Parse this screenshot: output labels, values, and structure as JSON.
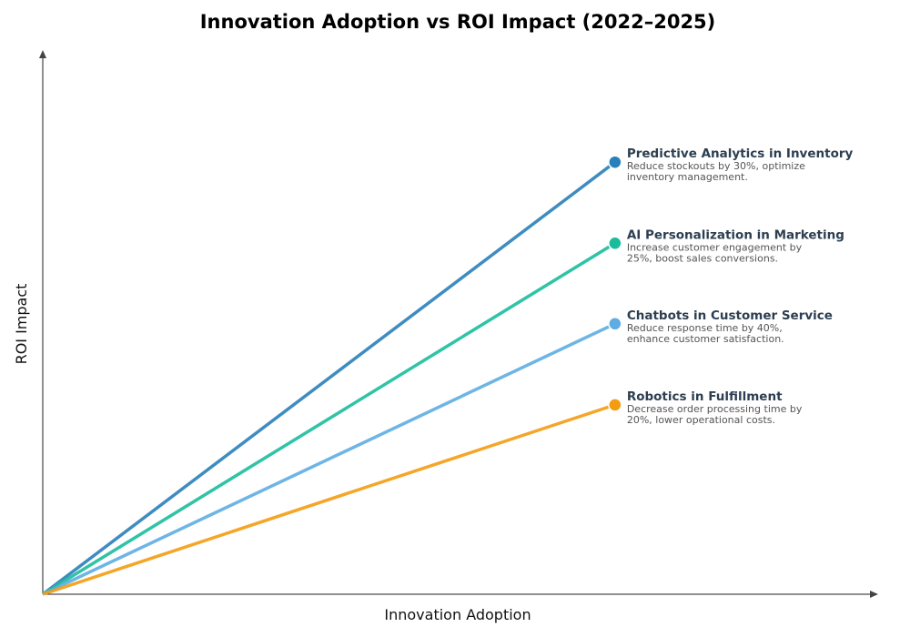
{
  "chart_data": {
    "type": "line",
    "title": "Innovation Adoption vs ROI Impact (2022–2025)",
    "xlabel": "Innovation Adoption",
    "ylabel": "ROI Impact",
    "xlim": [
      0,
      10
    ],
    "ylim": [
      0,
      10
    ],
    "grid": false,
    "ticks": false,
    "series": [
      {
        "name": "Predictive Analytics in Inventory",
        "description_lines": [
          "Reduce stockouts by 30%, optimize",
          "inventory management."
        ],
        "color": "#2980b9",
        "points": [
          [
            0,
            0
          ],
          [
            6.85,
            7.94
          ]
        ]
      },
      {
        "name": "AI Personalization in Marketing",
        "description_lines": [
          "Increase customer engagement by",
          "25%, boost sales conversions."
        ],
        "color": "#1abc9c",
        "points": [
          [
            0,
            0
          ],
          [
            6.85,
            6.45
          ]
        ]
      },
      {
        "name": "Chatbots in Customer Service",
        "description_lines": [
          "Reduce response time by 40%,",
          "enhance customer satisfaction."
        ],
        "color": "#5dade2",
        "points": [
          [
            0,
            0
          ],
          [
            6.85,
            4.97
          ]
        ]
      },
      {
        "name": "Robotics in Fulfillment",
        "description_lines": [
          "Decrease order processing time by",
          "20%, lower operational costs."
        ],
        "color": "#f39c12",
        "points": [
          [
            0,
            0
          ],
          [
            6.85,
            3.48
          ]
        ]
      }
    ]
  }
}
